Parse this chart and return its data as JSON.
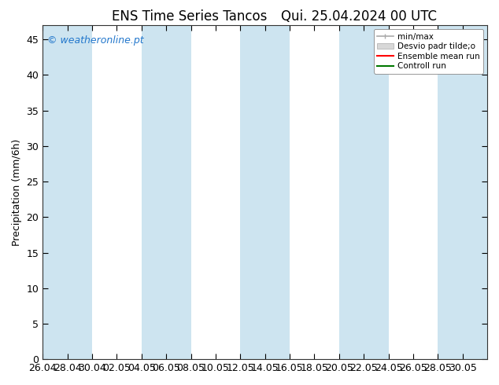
{
  "title_left": "ENS Time Series Tancos",
  "title_right": "Qui. 25.04.2024 00 UTC",
  "ylabel": "Precipitation (mm/6h)",
  "ylim": [
    0,
    47
  ],
  "yticks": [
    0,
    5,
    10,
    15,
    20,
    25,
    30,
    35,
    40,
    45
  ],
  "xtick_labels": [
    "26.04",
    "28.04",
    "30.04",
    "02.05",
    "04.05",
    "06.05",
    "08.05",
    "10.05",
    "12.05",
    "14.05",
    "16.05",
    "18.05",
    "20.05",
    "22.05",
    "24.05",
    "26.05",
    "28.05",
    "30.05"
  ],
  "bg_color": "#ffffff",
  "plot_bg_color": "#ffffff",
  "band_color": "#cde4f0",
  "band_indices": [
    0,
    4,
    8,
    12,
    16
  ],
  "legend_labels": [
    "min/max",
    "Desvio padr tilde;o",
    "Ensemble mean run",
    "Controll run"
  ],
  "legend_line_color": "#aaaaaa",
  "legend_patch_color": "#d8d8d8",
  "ensemble_color": "#ff0000",
  "control_color": "#007700",
  "watermark": "© weatheronline.pt",
  "watermark_color": "#2277cc",
  "title_fontsize": 12,
  "axis_fontsize": 9,
  "tick_fontsize": 9
}
